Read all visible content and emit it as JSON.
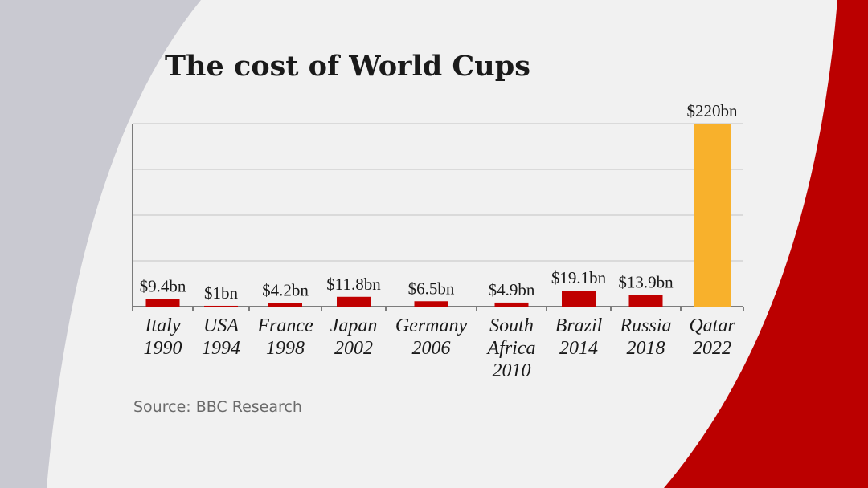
{
  "chart_data": {
    "type": "bar",
    "title": "The cost of World Cups",
    "source": "Source: BBC Research",
    "categories": [
      [
        "Italy",
        "1990"
      ],
      [
        "USA",
        "1994"
      ],
      [
        "France",
        "1998"
      ],
      [
        "Japan",
        "2002"
      ],
      [
        "Germany",
        "2006"
      ],
      [
        "South",
        "Africa",
        "2010"
      ],
      [
        "Brazil",
        "2014"
      ],
      [
        "Russia",
        "2018"
      ],
      [
        "Qatar",
        "2022"
      ]
    ],
    "values": [
      9.4,
      1,
      4.2,
      11.8,
      6.5,
      4.9,
      19.1,
      13.9,
      220
    ],
    "value_labels": [
      "$9.4bn",
      "$1bn",
      "$4.2bn",
      "$11.8bn",
      "$6.5bn",
      "$4.9bn",
      "$19.1bn",
      "$13.9bn",
      "$220bn"
    ],
    "colors": [
      "#c00000",
      "#c00000",
      "#c00000",
      "#c00000",
      "#c00000",
      "#c00000",
      "#c00000",
      "#c00000",
      "#f8b12c"
    ],
    "ylim": [
      0,
      220
    ],
    "yticks": [
      0,
      55,
      110,
      165,
      220
    ],
    "grid": true
  }
}
